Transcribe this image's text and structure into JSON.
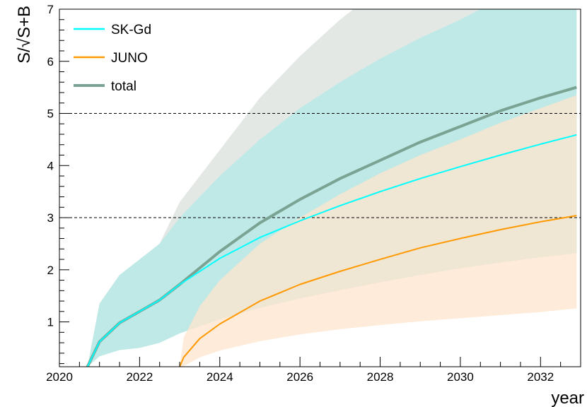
{
  "chart_data": {
    "type": "area",
    "title": "",
    "xlabel": "year",
    "ylabel": "S/√S+B",
    "xlim": [
      2020,
      2033
    ],
    "ylim": [
      0.14,
      7.0
    ],
    "xticks": [
      2020,
      2022,
      2024,
      2026,
      2028,
      2030,
      2032
    ],
    "yticks": [
      1,
      2,
      3,
      4,
      5,
      6,
      7
    ],
    "reference_lines": [
      3,
      5
    ],
    "legend_position": "top-left",
    "grid": false,
    "series": [
      {
        "name": "SK-Gd",
        "color": "#00ffff",
        "band_color": "#bfe9e6",
        "x": [
          2020.7,
          2021.0,
          2021.5,
          2022.0,
          2022.5,
          2023.0,
          2024.0,
          2025.0,
          2026.0,
          2027.0,
          2028.0,
          2029.0,
          2030.0,
          2031.0,
          2032.0,
          2032.9
        ],
        "values": [
          0.14,
          0.62,
          0.98,
          1.2,
          1.42,
          1.72,
          2.22,
          2.62,
          2.94,
          3.23,
          3.5,
          3.75,
          3.98,
          4.2,
          4.41,
          4.59
        ],
        "band_low": [
          0.14,
          0.34,
          0.46,
          0.5,
          0.6,
          0.78,
          1.05,
          1.27,
          1.45,
          1.61,
          1.76,
          1.9,
          2.03,
          2.14,
          2.24,
          2.32
        ],
        "band_high": [
          0.14,
          1.35,
          1.9,
          2.2,
          2.5,
          3.0,
          3.8,
          4.5,
          5.1,
          5.6,
          6.05,
          6.45,
          6.8,
          7.2,
          7.5,
          7.8
        ]
      },
      {
        "name": "JUNO",
        "color": "#ff9900",
        "band_color": "#ffe4cc",
        "x": [
          2023.0,
          2023.1,
          2023.5,
          2024.0,
          2025.0,
          2026.0,
          2027.0,
          2028.0,
          2029.0,
          2030.0,
          2031.0,
          2032.0,
          2032.9
        ],
        "values": [
          0.14,
          0.32,
          0.68,
          0.96,
          1.4,
          1.72,
          1.97,
          2.2,
          2.42,
          2.6,
          2.77,
          2.92,
          3.04
        ],
        "band_low": [
          0.14,
          0.15,
          0.32,
          0.45,
          0.63,
          0.76,
          0.86,
          0.94,
          1.01,
          1.07,
          1.13,
          1.19,
          1.26
        ],
        "band_high": [
          0.14,
          0.7,
          1.3,
          1.8,
          2.5,
          3.0,
          3.45,
          3.85,
          4.2,
          4.5,
          4.82,
          5.1,
          5.35
        ]
      },
      {
        "name": "total",
        "color": "#7aa393",
        "band_color": "#e3e8e5",
        "x": [
          2020.7,
          2021.0,
          2021.5,
          2022.0,
          2022.5,
          2023.0,
          2024.0,
          2025.0,
          2026.0,
          2027.0,
          2028.0,
          2029.0,
          2030.0,
          2031.0,
          2032.0,
          2032.9
        ],
        "values": [
          0.14,
          0.62,
          0.98,
          1.2,
          1.42,
          1.72,
          2.35,
          2.9,
          3.35,
          3.75,
          4.1,
          4.45,
          4.75,
          5.05,
          5.3,
          5.5
        ],
        "band_low": [
          0.14,
          0.34,
          0.46,
          0.5,
          0.6,
          0.78,
          1.05,
          1.27,
          1.45,
          1.61,
          1.76,
          1.9,
          2.03,
          2.14,
          2.24,
          2.32
        ],
        "band_high": [
          0.14,
          1.35,
          1.9,
          2.2,
          2.5,
          3.3,
          4.3,
          5.3,
          6.1,
          6.8,
          7.4,
          7.9,
          8.3,
          8.7,
          9.0,
          9.3
        ]
      }
    ]
  }
}
